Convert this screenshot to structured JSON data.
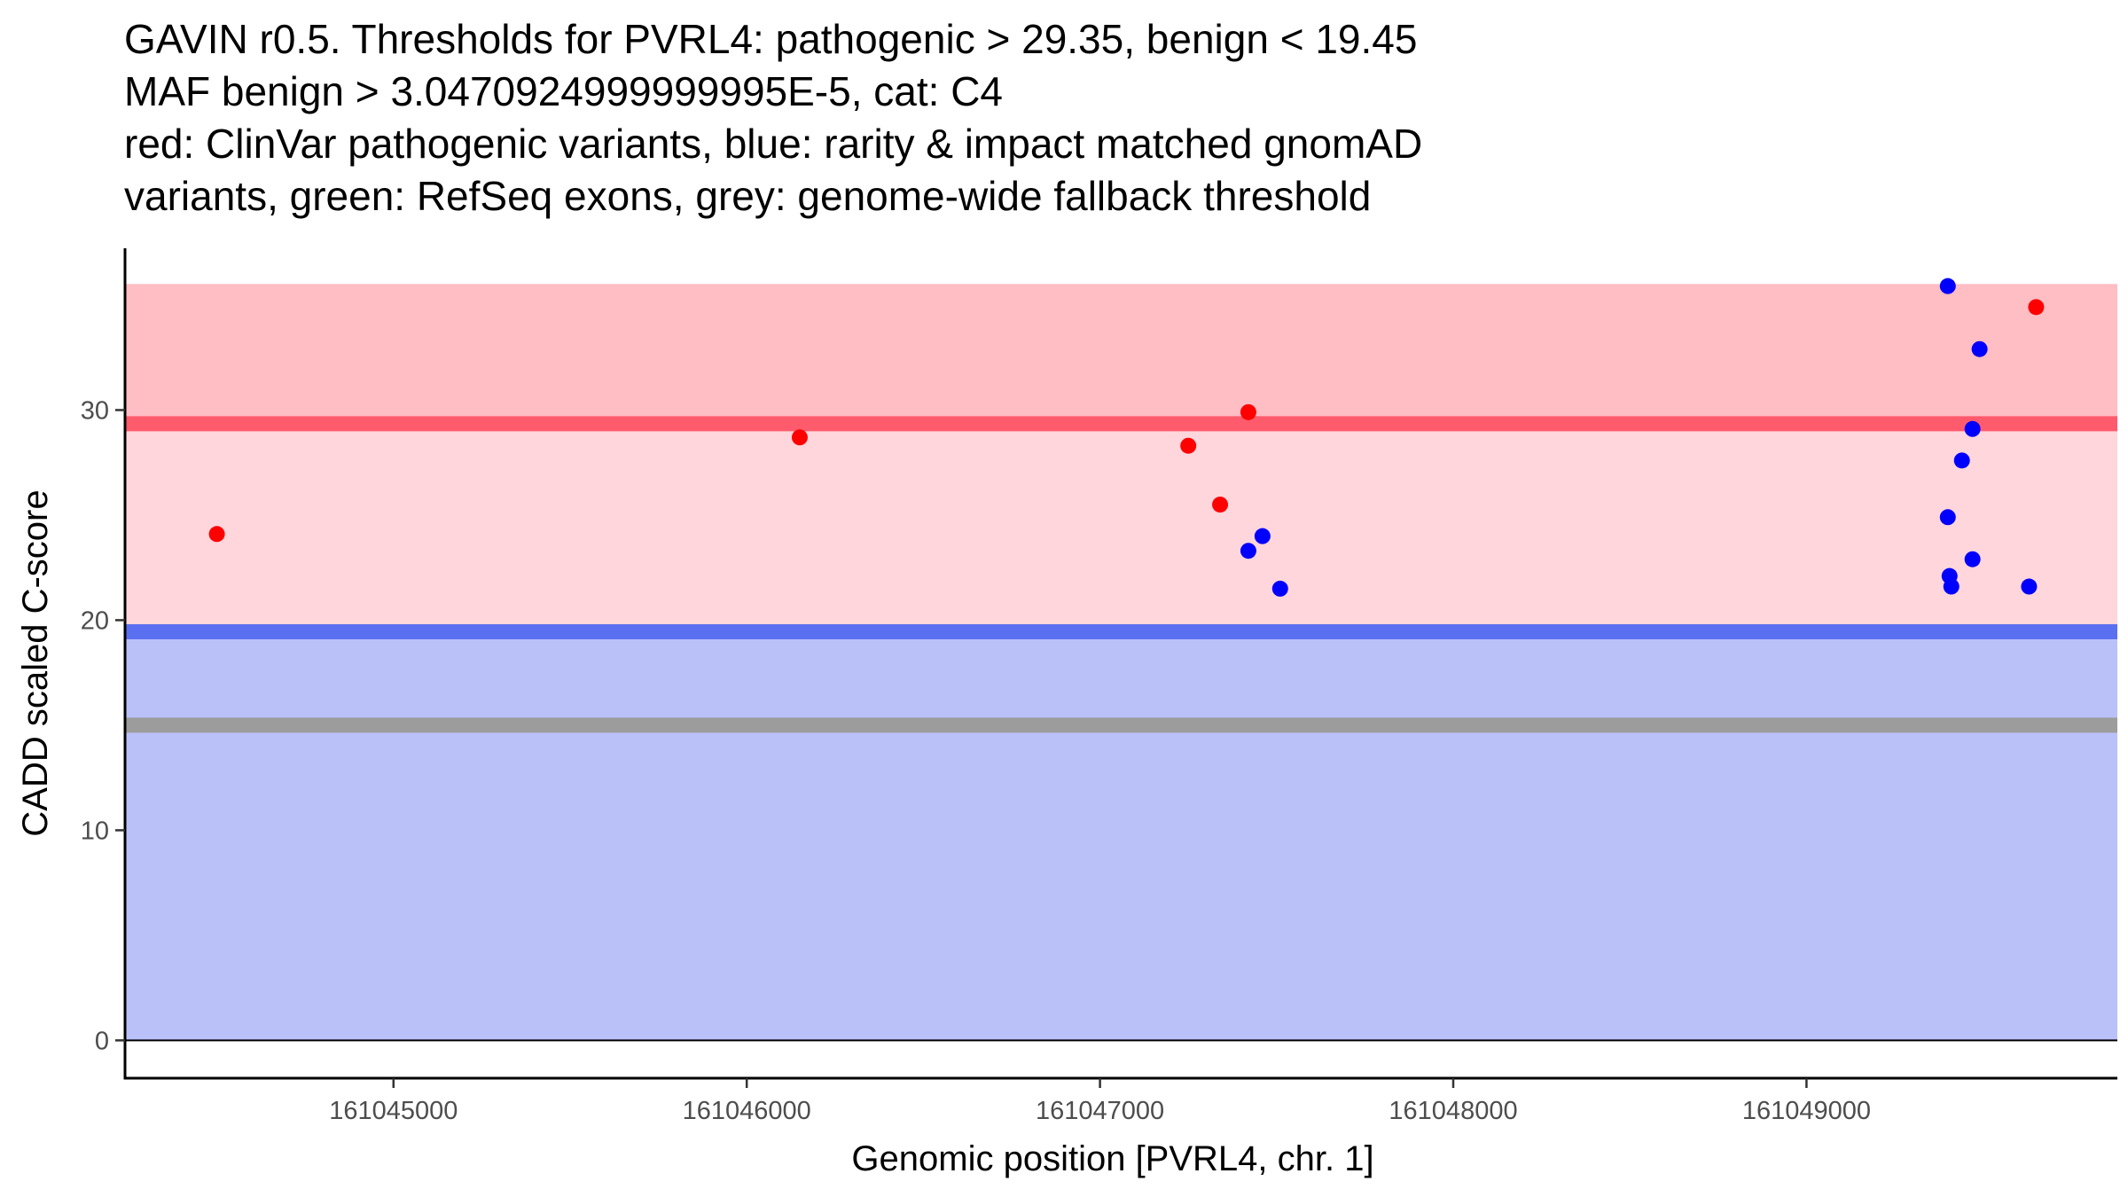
{
  "chart_data": {
    "type": "scatter",
    "title_lines": [
      "GAVIN r0.5. Thresholds for PVRL4: pathogenic > 29.35, benign < 19.45",
      "MAF benign > 3.0470924999999995E-5, cat: C4",
      "red: ClinVar pathogenic variants, blue: rarity & impact matched gnomAD",
      "variants, green: RefSeq exons, grey: genome-wide fallback threshold"
    ],
    "xlabel": "Genomic position [PVRL4, chr. 1]",
    "ylabel": "CADD scaled C-score",
    "xlim": [
      161044240,
      161049880
    ],
    "ylim": [
      -1.8,
      37.7
    ],
    "x_ticks": [
      161045000,
      161046000,
      161047000,
      161048000,
      161049000
    ],
    "x_tick_labels": [
      "161045000",
      "161046000",
      "161047000",
      "161048000",
      "161049000"
    ],
    "y_ticks": [
      0,
      10,
      20,
      30
    ],
    "y_tick_labels": [
      "0",
      "10",
      "20",
      "30"
    ],
    "grid": false,
    "legend": "none",
    "colors": {
      "pathogenic_zone_upper": "#ffbdc4",
      "pathogenic_zone_lower": "#ffd6dc",
      "benign_zone": "#bac1f9",
      "pathogenic_threshold": "#ff5b6c",
      "benign_threshold": "#5b70f1",
      "fallback_threshold": "#9c9c9c",
      "clinvar_pathogenic": "#ff0000",
      "gnomad_matched": "#0000ff",
      "zero_line": "#000000"
    },
    "bands": [
      {
        "name": "pathogenic-upper-band",
        "y_from": 29.35,
        "y_to": 36.0,
        "color_key": "pathogenic_zone_upper"
      },
      {
        "name": "pathogenic-lower-band",
        "y_from": 19.45,
        "y_to": 29.35,
        "color_key": "pathogenic_zone_lower"
      },
      {
        "name": "benign-band",
        "y_from": 0,
        "y_to": 19.45,
        "color_key": "benign_zone"
      }
    ],
    "thresholds": [
      {
        "name": "pathogenic-threshold-line",
        "y": 29.35,
        "color_key": "pathogenic_threshold"
      },
      {
        "name": "benign-threshold-line",
        "y": 19.45,
        "color_key": "benign_threshold"
      },
      {
        "name": "fallback-threshold-line",
        "y": 15.0,
        "color_key": "fallback_threshold"
      }
    ],
    "series": [
      {
        "name": "ClinVar pathogenic variants",
        "color_key": "clinvar_pathogenic",
        "points": [
          {
            "x": 161044500,
            "y": 24.1
          },
          {
            "x": 161046150,
            "y": 28.7
          },
          {
            "x": 161047250,
            "y": 28.3
          },
          {
            "x": 161047340,
            "y": 25.5
          },
          {
            "x": 161047420,
            "y": 29.9
          },
          {
            "x": 161049650,
            "y": 34.9
          }
        ]
      },
      {
        "name": "rarity & impact matched gnomAD variants",
        "color_key": "gnomad_matched",
        "points": [
          {
            "x": 161047420,
            "y": 23.3
          },
          {
            "x": 161047460,
            "y": 24.0
          },
          {
            "x": 161047510,
            "y": 21.5
          },
          {
            "x": 161049400,
            "y": 35.9
          },
          {
            "x": 161049490,
            "y": 32.9
          },
          {
            "x": 161049470,
            "y": 29.1
          },
          {
            "x": 161049440,
            "y": 27.6
          },
          {
            "x": 161049400,
            "y": 24.9
          },
          {
            "x": 161049470,
            "y": 22.9
          },
          {
            "x": 161049405,
            "y": 22.1
          },
          {
            "x": 161049410,
            "y": 21.6
          },
          {
            "x": 161049630,
            "y": 21.6
          }
        ]
      }
    ]
  }
}
